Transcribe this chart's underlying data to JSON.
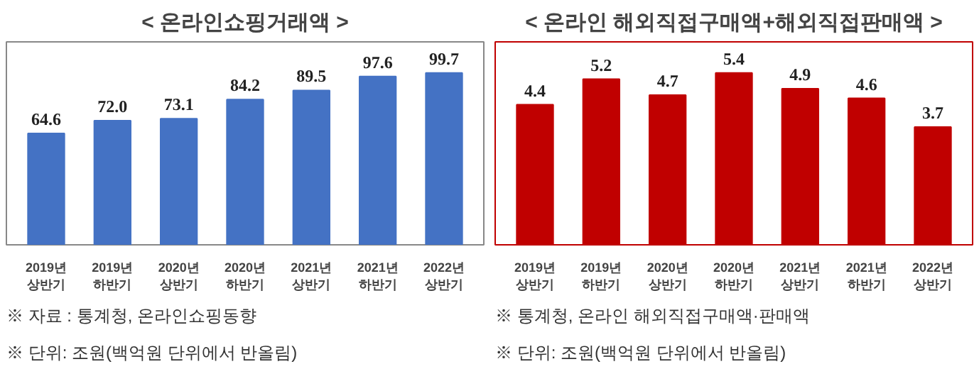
{
  "chart_data": [
    {
      "type": "bar",
      "title": "< 온라인쇼핑거래액 >",
      "categories": [
        "2019년 상반기",
        "2019년 하반기",
        "2020년 상반기",
        "2020년 하반기",
        "2021년 상반기",
        "2021년 하반기",
        "2022년 상반기"
      ],
      "series": [
        {
          "color": "#4472c4",
          "values": [
            64.6,
            72.0,
            73.1,
            84.2,
            89.5,
            97.6,
            99.7
          ],
          "value_labels": [
            "64.6",
            "72.0",
            "73.1",
            "84.2",
            "89.5",
            "97.6",
            "99.7"
          ]
        }
      ],
      "annotations": [
        "※ 자료 : 통계청, 온라인쇼핑동향",
        "※ 단위: 조원(백억원 단위에서 반올림)"
      ]
    },
    {
      "type": "bar",
      "title": "< 온라인 해외직접구매액+해외직접판매액 >",
      "categories": [
        "2019년 상반기",
        "2019년 하반기",
        "2020년 상반기",
        "2020년 하반기",
        "2021년 상반기",
        "2021년 하반기",
        "2022년 상반기"
      ],
      "series": [
        {
          "color": "#c00000",
          "values": [
            4.4,
            5.2,
            4.7,
            5.4,
            4.9,
            4.6,
            3.7
          ],
          "value_labels": [
            "4.4",
            "5.2",
            "4.7",
            "5.4",
            "4.9",
            "4.6",
            "3.7"
          ]
        }
      ],
      "annotations": [
        "※ 통계청, 온라인 해외직접구매액·판매액",
        "※ 단위: 조원(백억원 단위에서 반올림)"
      ]
    }
  ]
}
